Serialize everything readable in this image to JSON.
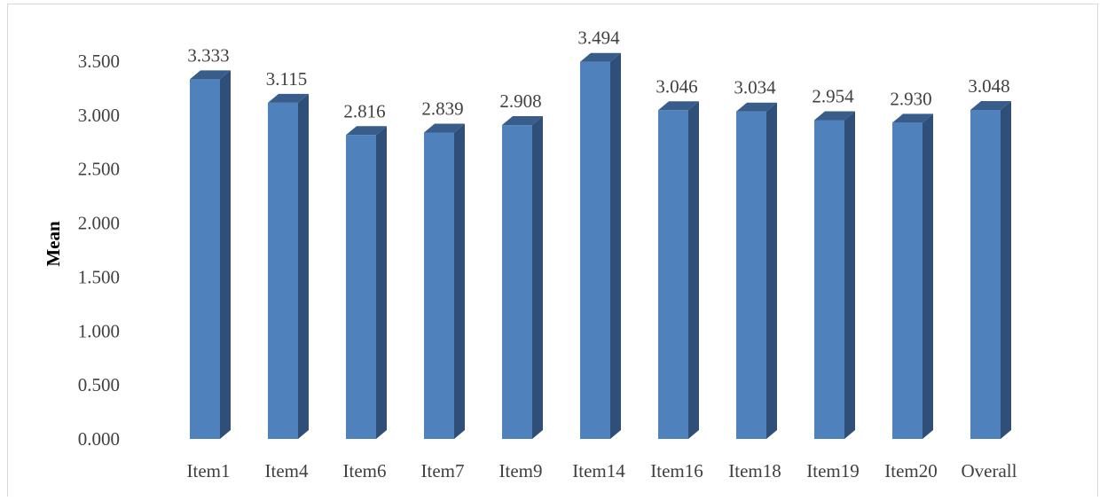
{
  "chart_data": {
    "type": "bar",
    "categories": [
      "Item1",
      "Item4",
      "Item6",
      "Item7",
      "Item9",
      "Item14",
      "Item16",
      "Item18",
      "Item19",
      "Item20",
      "Overall"
    ],
    "values": [
      3.333,
      3.115,
      2.816,
      2.839,
      2.908,
      3.494,
      3.046,
      3.034,
      2.954,
      2.93,
      3.048
    ],
    "data_labels": [
      "3.333",
      "3.115",
      "2.816",
      "2.839",
      "2.908",
      "3.494",
      "3.046",
      "3.034",
      "2.954",
      "2.930",
      "3.048"
    ],
    "y_ticks": [
      "0.000",
      "0.500",
      "1.000",
      "1.500",
      "2.000",
      "2.500",
      "3.000",
      "3.500"
    ],
    "title": "",
    "xlabel": "",
    "ylabel": "Mean",
    "ylim": [
      0,
      3.5
    ],
    "grid": false,
    "legend": "none",
    "style": "3d-column",
    "colors": {
      "bar_front": "#4f81bd",
      "bar_side": "#2f4f79",
      "bar_top": "#385d8a"
    }
  }
}
